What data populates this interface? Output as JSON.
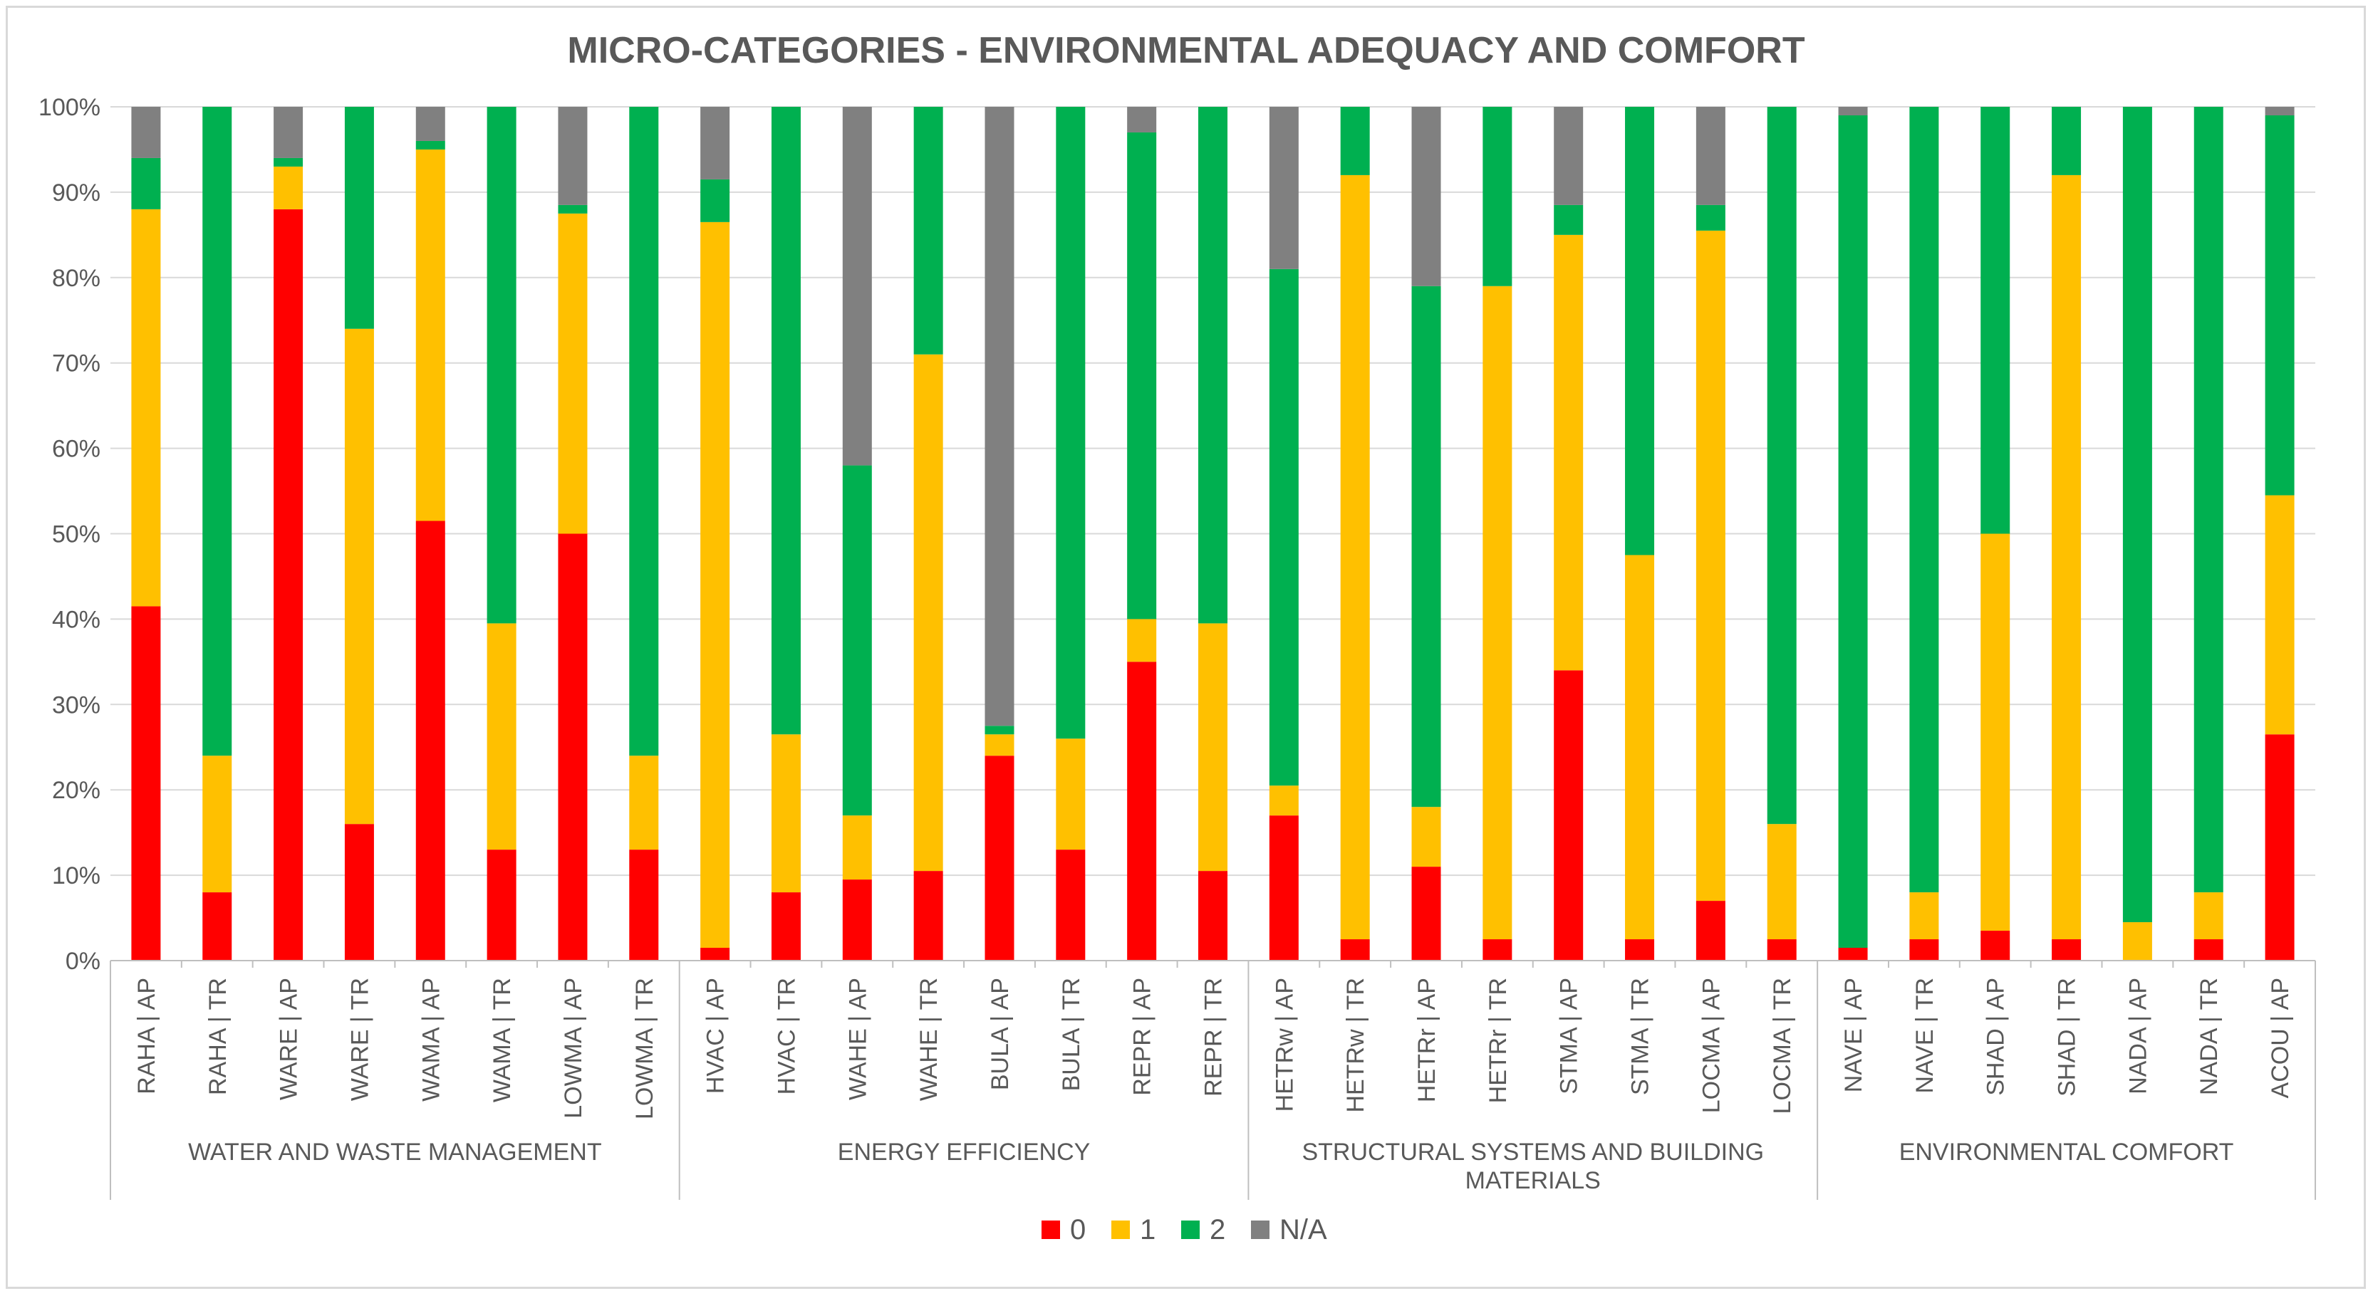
{
  "chart_data": {
    "type": "bar",
    "stacked": true,
    "title": "MICRO-CATEGORIES  - ENVIRONMENTAL ADEQUACY AND COMFORT",
    "xlabel": "",
    "ylabel": "",
    "ylim": [
      0,
      100
    ],
    "yticks": [
      "0%",
      "10%",
      "20%",
      "30%",
      "40%",
      "50%",
      "60%",
      "70%",
      "80%",
      "90%",
      "100%"
    ],
    "grid": true,
    "legend": "bottom",
    "categories": [
      "RAHA | AP",
      "RAHA | TR",
      "WARE | AP",
      "WARE | TR",
      "WAMA | AP",
      "WAMA | TR",
      "LOWMA | AP",
      "LOWMA | TR",
      "HVAC | AP",
      "HVAC | TR",
      "WAHE | AP",
      "WAHE | TR",
      "BULA | AP",
      "BULA | TR",
      "REPR | AP",
      "REPR | TR",
      "HETRw | AP",
      "HETRw | TR",
      "HETRr | AP",
      "HETRr | TR",
      "STMA | AP",
      "STMA | TR",
      "LOCMA | AP",
      "LOCMA | TR",
      "NAVE | AP",
      "NAVE | TR",
      "SHAD | AP",
      "SHAD | TR",
      "NADA | AP",
      "NADA | TR",
      "ACOU | AP"
    ],
    "groups": [
      {
        "label": "WATER AND WASTE MANAGEMENT",
        "count": 8
      },
      {
        "label": "ENERGY EFFICIENCY",
        "count": 8
      },
      {
        "label": "STRUCTURAL SYSTEMS AND BUILDING MATERIALS",
        "count": 8
      },
      {
        "label": "ENVIRONMENTAL COMFORT",
        "count": 7
      }
    ],
    "series": [
      {
        "name": "0",
        "color": "#ff0000",
        "values": [
          41.5,
          8,
          88,
          16,
          51.5,
          13,
          50,
          13,
          1.5,
          8,
          9.5,
          10.5,
          24,
          13,
          35,
          10.5,
          17,
          2.5,
          11,
          2.5,
          34,
          2.5,
          7,
          2.5,
          1.5,
          2.5,
          3.5,
          2.5,
          0,
          2.5,
          26.5
        ]
      },
      {
        "name": "1",
        "color": "#ffc000",
        "values": [
          46.5,
          16,
          5,
          58,
          43.5,
          26.5,
          37.5,
          11,
          85,
          18.5,
          7.5,
          60.5,
          2.5,
          13,
          5,
          29,
          3.5,
          89.5,
          7,
          76.5,
          51,
          45,
          78.5,
          13.5,
          0,
          5.5,
          46.5,
          89.5,
          4.5,
          5.5,
          28
        ]
      },
      {
        "name": "2",
        "color": "#00b050",
        "values": [
          6,
          76,
          1,
          26,
          1,
          60.5,
          1,
          76,
          5,
          73.5,
          41,
          29,
          1,
          74,
          57,
          60.5,
          60.5,
          8,
          61,
          21,
          3.5,
          52.5,
          3,
          84,
          97.5,
          92,
          50,
          8,
          95.5,
          92,
          44.5
        ]
      },
      {
        "name": "N/A",
        "color": "#808080",
        "values": [
          6,
          0,
          6,
          0,
          4,
          0,
          11.5,
          0,
          8.5,
          0,
          42,
          0,
          72.5,
          0,
          3,
          0,
          19,
          0,
          21,
          0,
          11.5,
          0,
          11.5,
          0,
          1,
          0,
          0,
          0,
          0,
          0,
          1
        ]
      }
    ]
  }
}
